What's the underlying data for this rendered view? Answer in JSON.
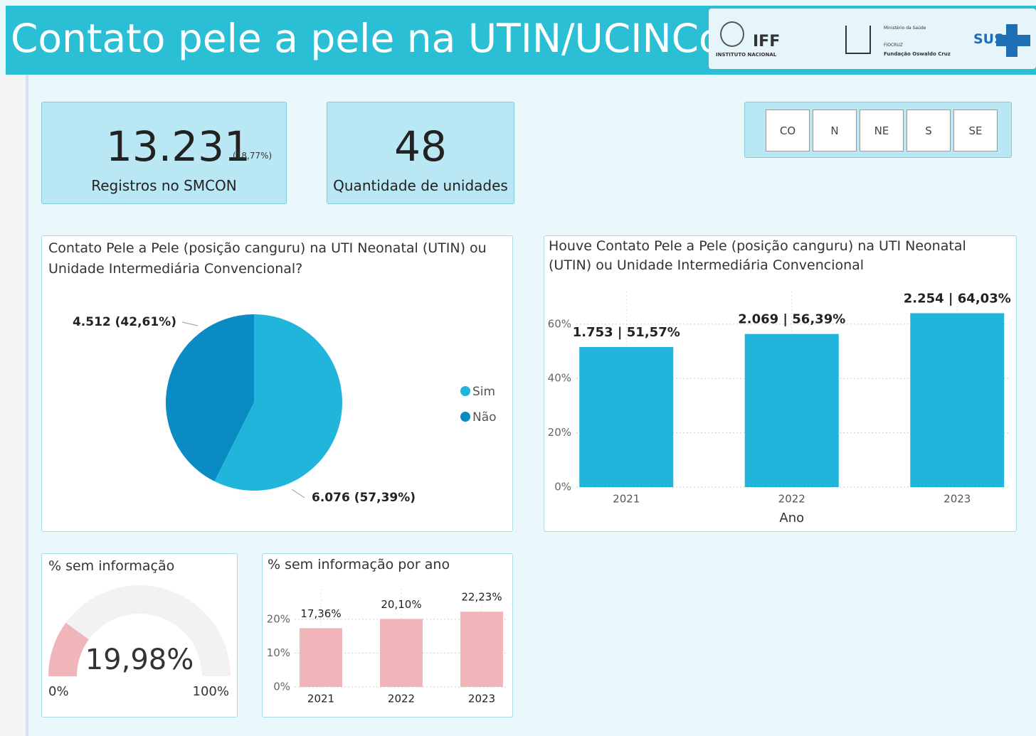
{
  "header": {
    "title": "Contato pele a pele na UTIN/UCINCo",
    "logos": {
      "iff": "IFF",
      "iff_sub": "INSTITUTO NACIONAL",
      "ministry": "Ministério da Saúde",
      "fiocruz": "FIOCRUZ",
      "fiocruz_sub": "Fundação Oswaldo Cruz",
      "sus": "SUS"
    }
  },
  "cards": [
    {
      "value": "13.231",
      "note": "(18,77%)",
      "label": "Registros no SMCON"
    },
    {
      "value": "48",
      "label": "Quantidade de unidades"
    }
  ],
  "region_filter": [
    "CO",
    "N",
    "NE",
    "S",
    "SE"
  ],
  "chart_data": [
    {
      "type": "pie",
      "title": "Contato Pele a Pele (posição canguru) na UTI Neonatal (UTIN) ou Unidade Intermediária Convencional?",
      "categories": [
        "Sim",
        "Não"
      ],
      "values": [
        6076,
        4512
      ],
      "value_labels": [
        "6.076 (57,39%)",
        "4.512 (42,61%)"
      ],
      "colors": [
        "#22b5dc",
        "#0a8bc4"
      ]
    },
    {
      "type": "bar",
      "title": "Houve Contato Pele a Pele (posição canguru) na UTI Neonatal (UTIN) ou Unidade Intermediária Convencional",
      "x_label": "Ano",
      "categories": [
        "2021",
        "2022",
        "2023"
      ],
      "values": [
        51.57,
        56.39,
        64.03
      ],
      "value_labels": [
        "1.753 | 51,57%",
        "2.069 | 56,39%",
        "2.254 | 64,03%"
      ],
      "color": "#22b5dc",
      "ylim": [
        0,
        72
      ],
      "yticks": [
        {
          "value": 0,
          "label": "0%"
        },
        {
          "value": 20,
          "label": "20%"
        },
        {
          "value": 40,
          "label": "40%"
        },
        {
          "value": 60,
          "label": "60%"
        }
      ],
      "grid": true
    },
    {
      "type": "gauge",
      "title": "% sem informação",
      "value": 19.98,
      "value_label": "19,98%",
      "min": {
        "value": 0,
        "label": "0%"
      },
      "max": {
        "value": 100,
        "label": "100%"
      },
      "color": "#efb5b9",
      "track_color": "#f3f1f1"
    },
    {
      "type": "bar",
      "title": "% sem informação por ano",
      "categories": [
        "2021",
        "2022",
        "2023"
      ],
      "values": [
        17.36,
        20.1,
        22.23
      ],
      "value_labels": [
        "17,36%",
        "20,10%",
        "22,23%"
      ],
      "color": "#efb5b9",
      "ylim": [
        0,
        29
      ],
      "yticks": [
        {
          "value": 0,
          "label": "0%"
        },
        {
          "value": 10,
          "label": "10%"
        },
        {
          "value": 20,
          "label": "20%"
        }
      ],
      "grid": true
    }
  ]
}
